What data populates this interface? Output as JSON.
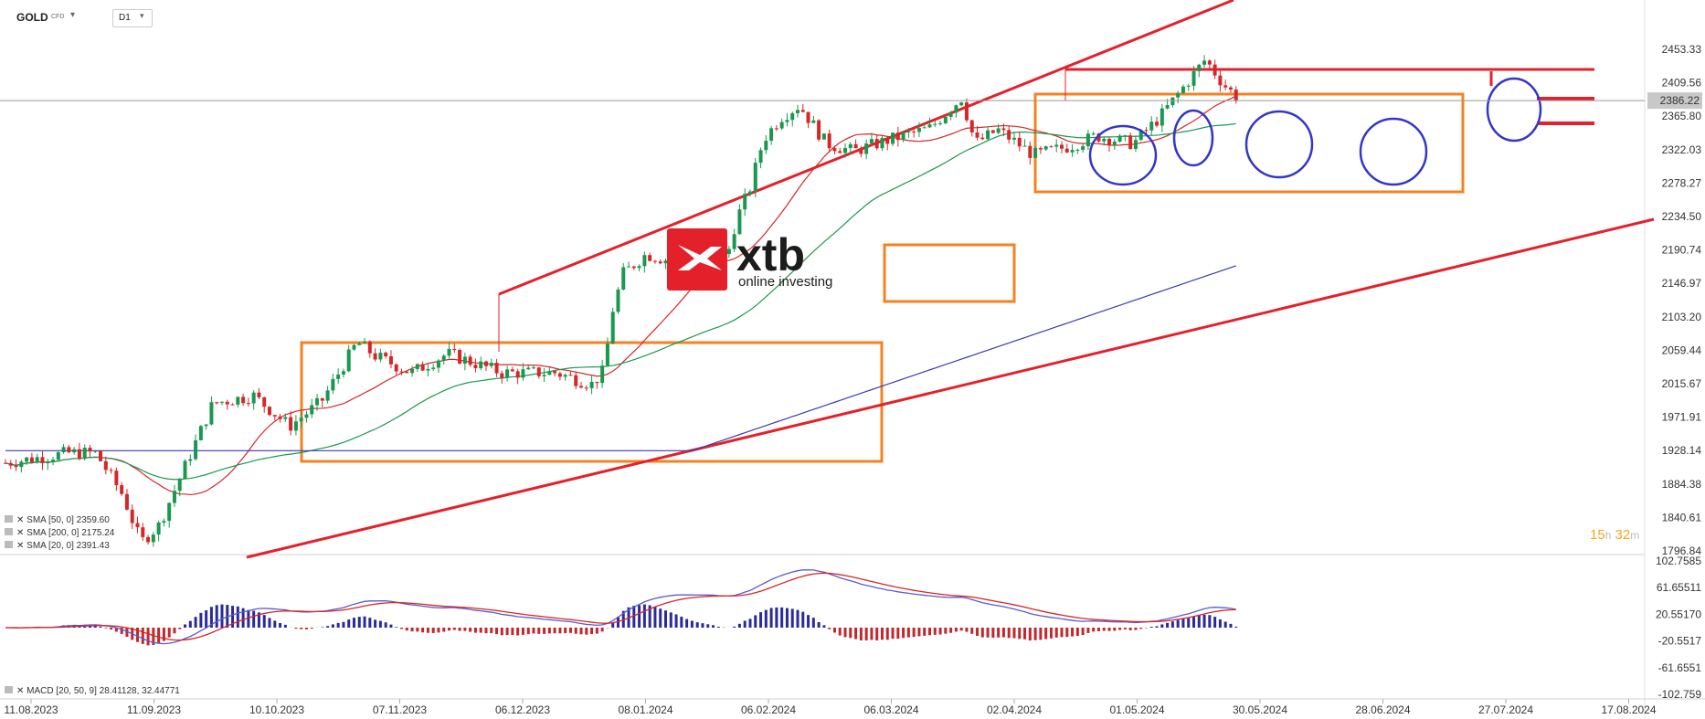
{
  "header": {
    "symbol": "GOLD",
    "symbol_type": "CFD",
    "timeframe": "D1"
  },
  "logo": {
    "brand": "xtb",
    "tagline": "online investing",
    "brand_color": "#e4212b"
  },
  "timer": {
    "hours": "15",
    "hours_unit": "h",
    "minutes": "32",
    "minutes_unit": "m"
  },
  "chart_data": [
    {
      "type": "candlestick",
      "title": "",
      "price_axis_ticks": [
        "2453.33",
        "2409.56",
        "2365.80",
        "2322.03",
        "2278.27",
        "2234.50",
        "2190.74",
        "2146.97",
        "2103.20",
        "2059.44",
        "2015.67",
        "1971.91",
        "1928.14",
        "1884.38",
        "1840.61",
        "1796.84"
      ],
      "ylim": [
        1796.84,
        2453.33
      ],
      "current_price": "2386.22",
      "date_ticks": [
        "11.08.2023",
        "11.09.2023",
        "10.10.2023",
        "07.11.2023",
        "06.12.2023",
        "08.01.2024",
        "06.02.2024",
        "06.03.2024",
        "02.04.2024",
        "01.05.2024",
        "30.05.2024",
        "28.06.2024",
        "27.07.2024",
        "17.08.2024"
      ],
      "legend": [
        {
          "label": "SMA [50, 0] 2359.60",
          "color": "#1a9850"
        },
        {
          "label": "SMA [200, 0] 2175.24",
          "color": "#3b3bb0"
        },
        {
          "label": "SMA [20, 0] 2391.43",
          "color": "#d62728"
        }
      ],
      "colors": {
        "up": "#1a9850",
        "down": "#d62728",
        "orange": "#f58220",
        "trend": "#e4212b",
        "circle": "#3535c8"
      }
    },
    {
      "type": "macd",
      "ticks": [
        "102.7585",
        "61.65511",
        "20.55170",
        "-20.5517",
        "-61.6551",
        "-102.759"
      ],
      "ylim": [
        -102.759,
        102.7585
      ],
      "legend": "MACD [20, 50, 9] 28.41128, 32.44771"
    }
  ]
}
